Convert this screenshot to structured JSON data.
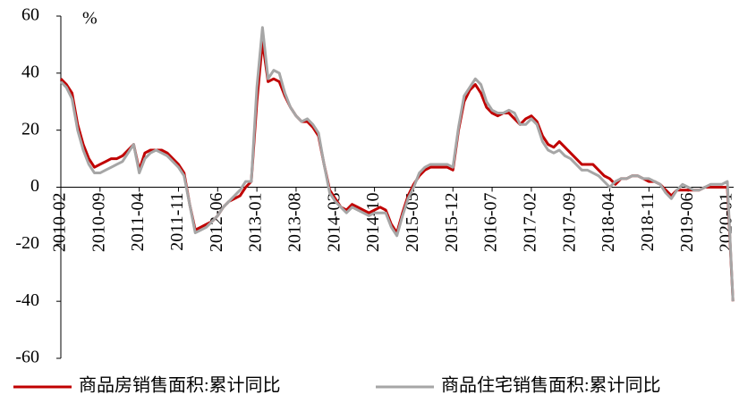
{
  "chart_data": {
    "type": "line",
    "unit": "%",
    "categories": [
      "2010-02",
      null,
      null,
      null,
      null,
      null,
      null,
      "2010-09",
      null,
      null,
      null,
      null,
      null,
      null,
      "2011-04",
      null,
      null,
      null,
      null,
      null,
      null,
      "2011-11",
      null,
      null,
      null,
      null,
      null,
      null,
      "2012-06",
      null,
      null,
      null,
      null,
      null,
      null,
      "2013-01",
      null,
      null,
      null,
      null,
      null,
      null,
      "2013-08",
      null,
      null,
      null,
      null,
      null,
      null,
      "2014-03",
      null,
      null,
      null,
      null,
      null,
      null,
      "2014-10",
      null,
      null,
      null,
      null,
      null,
      null,
      "2015-05",
      null,
      null,
      null,
      null,
      null,
      null,
      "2015-12",
      null,
      null,
      null,
      null,
      null,
      null,
      "2016-07",
      null,
      null,
      null,
      null,
      null,
      null,
      "2017-02",
      null,
      null,
      null,
      null,
      null,
      null,
      "2017-09",
      null,
      null,
      null,
      null,
      null,
      null,
      "2018-04",
      null,
      null,
      null,
      null,
      null,
      null,
      "2018-11",
      null,
      null,
      null,
      null,
      null,
      null,
      "2019-06",
      null,
      null,
      null,
      null,
      null,
      null,
      "2020-01",
      null
    ],
    "series": [
      {
        "name": "商品房销售面积:累计同比",
        "color": "#c00000",
        "values": [
          38,
          36,
          33,
          22,
          15,
          10,
          7,
          8,
          9,
          10,
          10,
          11,
          13,
          15,
          6,
          12,
          13,
          13,
          13,
          12,
          10,
          8,
          5,
          -6,
          -15,
          -14,
          -13,
          -12,
          -10,
          -7,
          -5,
          -4,
          -3,
          0,
          2,
          30,
          51,
          37,
          38,
          37,
          32,
          28,
          25,
          23,
          23,
          21,
          18,
          8,
          -1,
          -4,
          -7,
          -8,
          -6,
          -7,
          -8,
          -9,
          -8,
          -7,
          -8,
          -13,
          -16,
          -9,
          -3,
          1,
          4,
          6,
          7,
          7,
          7,
          7,
          6,
          20,
          30,
          34,
          36,
          33,
          28,
          26,
          25,
          26,
          26,
          24,
          22,
          24,
          25,
          23,
          18,
          15,
          14,
          16,
          14,
          12,
          10,
          8,
          8,
          8,
          6,
          4,
          3,
          1,
          3,
          3,
          4,
          4,
          3,
          2,
          2,
          1,
          -1,
          -3,
          -1,
          -1,
          -1,
          -1,
          -1,
          0,
          0,
          0,
          0,
          0,
          -40
        ]
      },
      {
        "name": "商品住宅销售面积:累计同比",
        "color": "#a6a6a6",
        "values": [
          37,
          35,
          31,
          20,
          13,
          8,
          5,
          5,
          6,
          7,
          8,
          9,
          12,
          15,
          5,
          10,
          12,
          13,
          12,
          11,
          9,
          7,
          4,
          -6,
          -16,
          -15,
          -14,
          -12,
          -10,
          -7,
          -5,
          -3,
          -1,
          2,
          2,
          35,
          56,
          38,
          41,
          40,
          33,
          28,
          25,
          23,
          24,
          22,
          19,
          8,
          -2,
          -5,
          -7,
          -9,
          -7,
          -8,
          -9,
          -10,
          -9,
          -9,
          -9,
          -14,
          -17,
          -10,
          -4,
          0,
          5,
          7,
          8,
          8,
          8,
          8,
          7,
          21,
          32,
          35,
          38,
          36,
          30,
          27,
          26,
          26,
          27,
          26,
          22,
          22,
          24,
          22,
          16,
          13,
          12,
          13,
          11,
          10,
          8,
          6,
          6,
          5,
          4,
          2,
          0,
          2,
          3,
          3,
          4,
          4,
          3,
          3,
          2,
          1,
          -2,
          -4,
          -1,
          1,
          0,
          -1,
          -1,
          0,
          1,
          1,
          1,
          2,
          -40
        ]
      }
    ],
    "ylim": [
      -60,
      60
    ],
    "yticks": [
      -60,
      -40,
      -20,
      0,
      20,
      40,
      60
    ]
  }
}
